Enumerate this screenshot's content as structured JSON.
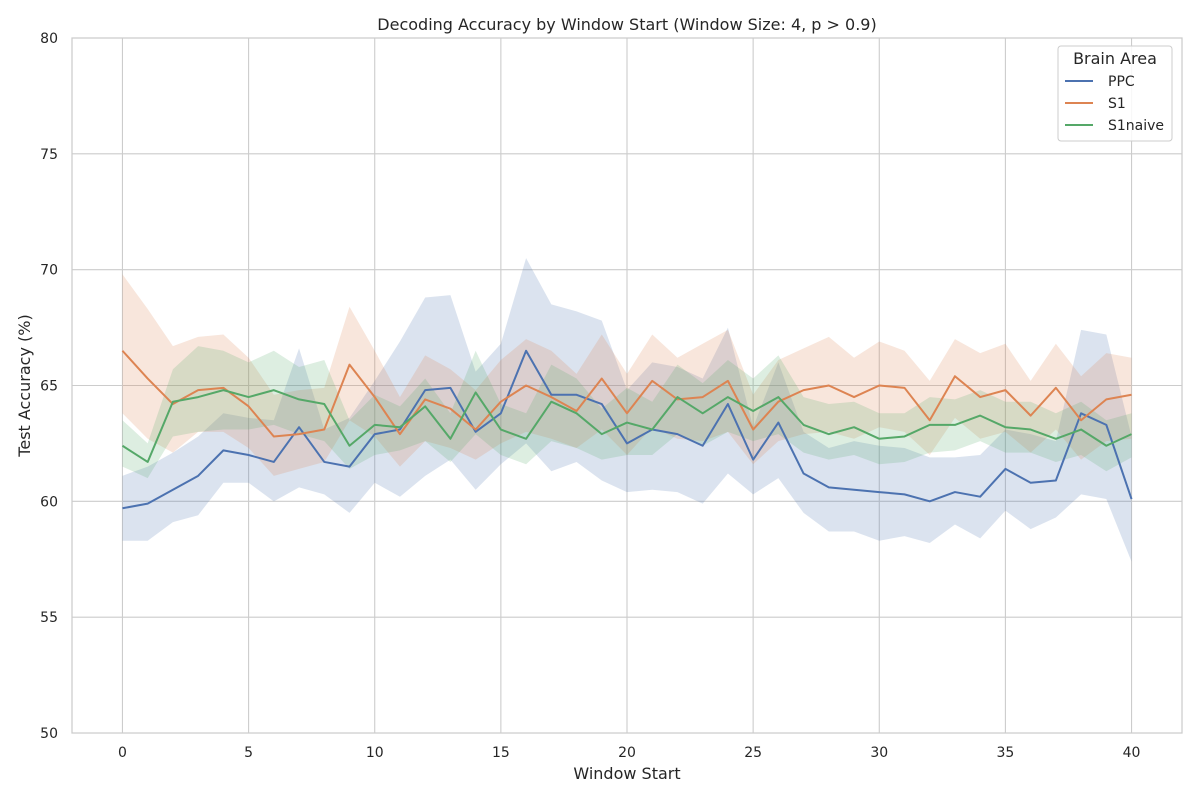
{
  "chart_data": {
    "type": "line",
    "title": "Decoding Accuracy by Window Start (Window Size: 4, p > 0.9)",
    "xlabel": "Window Start",
    "ylabel": "Test Accuracy (%)",
    "xlim": [
      -2,
      42
    ],
    "ylim": [
      50,
      80
    ],
    "xticks": [
      0,
      5,
      10,
      15,
      20,
      25,
      30,
      35,
      40
    ],
    "yticks": [
      50,
      55,
      60,
      65,
      70,
      75,
      80
    ],
    "grid": true,
    "legend": {
      "title": "Brain Area",
      "placement": "top-right"
    },
    "x": [
      0,
      1,
      2,
      3,
      4,
      5,
      6,
      7,
      8,
      9,
      10,
      11,
      12,
      13,
      14,
      15,
      16,
      17,
      18,
      19,
      20,
      21,
      22,
      23,
      24,
      25,
      26,
      27,
      28,
      29,
      30,
      31,
      32,
      33,
      34,
      35,
      36,
      37,
      38,
      39,
      40
    ],
    "series": [
      {
        "name": "PPC",
        "color": "#4c72b0",
        "values": [
          59.7,
          59.9,
          60.5,
          61.1,
          62.2,
          62.0,
          61.7,
          63.2,
          61.7,
          61.5,
          62.9,
          63.1,
          64.8,
          64.9,
          63.0,
          63.8,
          66.5,
          64.6,
          64.6,
          64.2,
          62.5,
          63.1,
          62.9,
          62.4,
          64.2,
          61.8,
          63.4,
          61.2,
          60.6,
          60.5,
          60.4,
          60.3,
          60.0,
          60.4,
          60.2,
          61.4,
          60.8,
          60.9,
          63.8,
          63.3,
          60.1
        ],
        "ci_low": [
          58.3,
          58.3,
          59.1,
          59.4,
          60.8,
          60.8,
          60.0,
          60.6,
          60.3,
          59.5,
          60.8,
          60.2,
          61.1,
          61.8,
          60.5,
          61.6,
          62.5,
          61.3,
          61.7,
          60.9,
          60.4,
          60.5,
          60.4,
          59.9,
          61.2,
          60.3,
          61.0,
          59.5,
          58.7,
          58.7,
          58.3,
          58.5,
          58.2,
          59.0,
          58.4,
          59.6,
          58.8,
          59.3,
          60.3,
          60.1,
          57.4
        ],
        "ci_high": [
          61.1,
          61.5,
          62.1,
          62.8,
          63.8,
          63.6,
          63.5,
          66.6,
          63.1,
          63.6,
          65.2,
          66.9,
          68.8,
          68.9,
          65.6,
          66.8,
          70.5,
          68.5,
          68.2,
          67.8,
          64.8,
          66.0,
          65.8,
          65.3,
          67.5,
          63.2,
          66.0,
          63.0,
          62.3,
          62.6,
          62.4,
          62.3,
          61.9,
          61.9,
          62.0,
          63.1,
          62.9,
          62.6,
          67.4,
          67.2,
          62.8
        ]
      },
      {
        "name": "S1",
        "color": "#dd8452",
        "values": [
          66.5,
          65.3,
          64.2,
          64.8,
          64.9,
          64.1,
          62.8,
          62.9,
          63.1,
          65.9,
          64.5,
          62.9,
          64.4,
          64.0,
          63.1,
          64.3,
          65.0,
          64.5,
          63.9,
          65.3,
          63.8,
          65.2,
          64.4,
          64.5,
          65.2,
          63.1,
          64.3,
          64.8,
          65.0,
          64.5,
          65.0,
          64.9,
          63.5,
          65.4,
          64.5,
          64.8,
          63.7,
          64.9,
          63.5,
          64.4,
          64.6
        ],
        "ci_low": [
          63.8,
          62.7,
          62.1,
          63.0,
          63.0,
          62.3,
          61.1,
          61.4,
          61.7,
          63.5,
          62.8,
          61.5,
          62.6,
          62.3,
          61.8,
          62.5,
          63.0,
          62.7,
          62.3,
          63.1,
          62.0,
          63.2,
          62.7,
          62.6,
          63.0,
          61.6,
          62.6,
          62.9,
          63.0,
          62.7,
          63.2,
          63.0,
          62.0,
          63.6,
          62.7,
          63.0,
          62.1,
          63.1,
          61.8,
          62.6,
          62.7
        ],
        "ci_high": [
          69.8,
          68.3,
          66.7,
          67.1,
          67.2,
          66.2,
          64.6,
          64.8,
          64.9,
          68.4,
          66.5,
          64.5,
          66.3,
          65.7,
          64.8,
          66.1,
          67.0,
          66.5,
          65.5,
          67.2,
          65.5,
          67.2,
          66.2,
          66.8,
          67.4,
          64.6,
          66.1,
          66.6,
          67.1,
          66.2,
          66.9,
          66.5,
          65.2,
          67.0,
          66.4,
          66.8,
          65.2,
          66.8,
          65.4,
          66.4,
          66.2
        ]
      },
      {
        "name": "S1naive",
        "color": "#55a868",
        "values": [
          62.4,
          61.7,
          64.3,
          64.5,
          64.8,
          64.5,
          64.8,
          64.4,
          64.2,
          62.4,
          63.3,
          63.2,
          64.1,
          62.7,
          64.7,
          63.1,
          62.7,
          64.3,
          63.8,
          62.9,
          63.4,
          63.1,
          64.5,
          63.8,
          64.5,
          63.9,
          64.5,
          63.3,
          62.9,
          63.2,
          62.7,
          62.8,
          63.3,
          63.3,
          63.7,
          63.2,
          63.1,
          62.7,
          63.1,
          62.4,
          62.9
        ],
        "ci_low": [
          61.5,
          61.0,
          62.8,
          63.0,
          63.1,
          63.1,
          63.3,
          62.9,
          62.6,
          61.4,
          62.0,
          62.2,
          62.6,
          61.7,
          62.9,
          62.0,
          61.6,
          62.6,
          62.3,
          61.8,
          62.0,
          62.0,
          62.9,
          62.4,
          63.0,
          62.6,
          62.9,
          62.1,
          61.8,
          62.0,
          61.6,
          61.7,
          62.1,
          62.2,
          62.6,
          62.1,
          62.1,
          61.7,
          62.0,
          61.3,
          61.9
        ],
        "ci_high": [
          63.5,
          62.5,
          65.7,
          66.7,
          66.5,
          66.0,
          66.5,
          65.8,
          66.1,
          63.5,
          64.6,
          64.1,
          65.3,
          63.8,
          66.5,
          64.2,
          63.8,
          65.9,
          65.3,
          64.0,
          64.9,
          64.3,
          65.9,
          65.1,
          66.1,
          65.3,
          66.3,
          64.5,
          64.2,
          64.3,
          63.8,
          63.8,
          64.5,
          64.4,
          64.8,
          64.3,
          64.3,
          63.8,
          64.3,
          63.5,
          63.8
        ]
      }
    ]
  }
}
